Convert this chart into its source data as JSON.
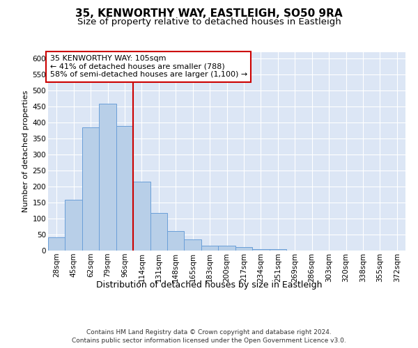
{
  "title1": "35, KENWORTHY WAY, EASTLEIGH, SO50 9RA",
  "title2": "Size of property relative to detached houses in Eastleigh",
  "xlabel": "Distribution of detached houses by size in Eastleigh",
  "ylabel": "Number of detached properties",
  "categories": [
    "28sqm",
    "45sqm",
    "62sqm",
    "79sqm",
    "96sqm",
    "114sqm",
    "131sqm",
    "148sqm",
    "165sqm",
    "183sqm",
    "200sqm",
    "217sqm",
    "234sqm",
    "251sqm",
    "269sqm",
    "286sqm",
    "303sqm",
    "320sqm",
    "338sqm",
    "355sqm",
    "372sqm"
  ],
  "values": [
    42,
    158,
    385,
    460,
    390,
    215,
    118,
    62,
    35,
    15,
    15,
    10,
    5,
    4,
    1,
    1,
    0,
    0,
    0,
    0,
    0
  ],
  "bar_color": "#b8cfe8",
  "bar_edge_color": "#6a9fd8",
  "annotation_line0": "35 KENWORTHY WAY: 105sqm",
  "annotation_line1": "← 41% of detached houses are smaller (788)",
  "annotation_line2": "58% of semi-detached houses are larger (1,100) →",
  "vline_color": "#cc0000",
  "annotation_box_facecolor": "#ffffff",
  "annotation_box_edgecolor": "#cc0000",
  "ylim": [
    0,
    620
  ],
  "yticks": [
    0,
    50,
    100,
    150,
    200,
    250,
    300,
    350,
    400,
    450,
    500,
    550,
    600
  ],
  "plot_bg_color": "#dce6f5",
  "fig_bg_color": "#ffffff",
  "footer1": "Contains HM Land Registry data © Crown copyright and database right 2024.",
  "footer2": "Contains public sector information licensed under the Open Government Licence v3.0.",
  "title1_fontsize": 11,
  "title2_fontsize": 9.5,
  "xlabel_fontsize": 9,
  "ylabel_fontsize": 8,
  "tick_fontsize": 7.5,
  "annotation_fontsize": 8,
  "footer_fontsize": 6.5,
  "vline_bin_index": 4
}
